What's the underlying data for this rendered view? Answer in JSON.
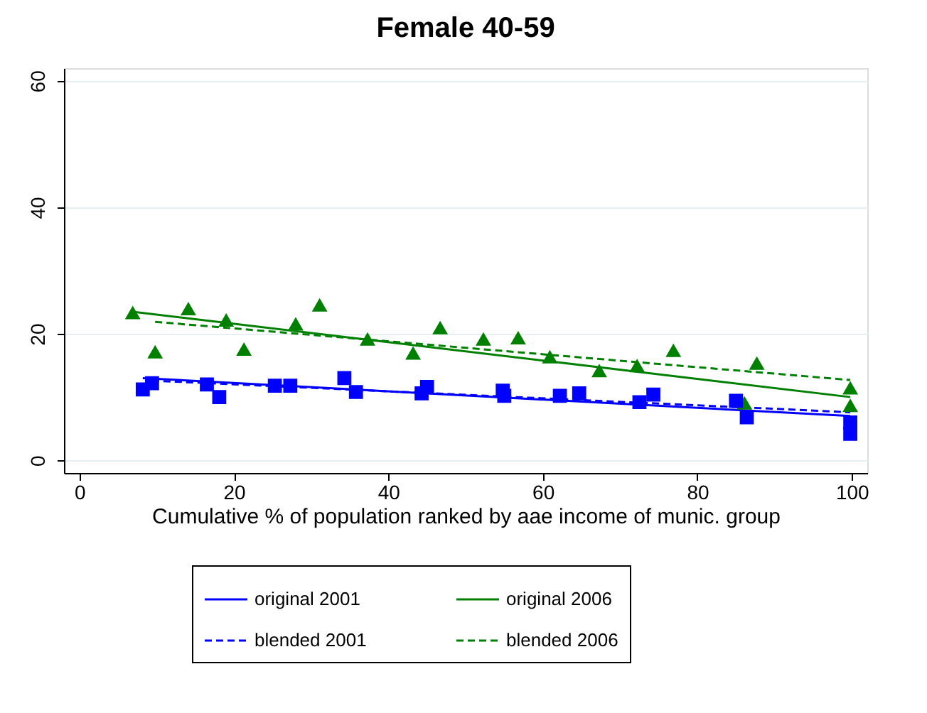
{
  "chart_data": {
    "type": "scatter",
    "title": "Female 40-59",
    "xlabel": "Cumulative % of population ranked by aae income of munic. group",
    "xlim": [
      -2,
      102
    ],
    "ylim": [
      -2,
      62
    ],
    "xticks": [
      0,
      20,
      40,
      60,
      80,
      100
    ],
    "yticks": [
      0,
      20,
      40,
      60
    ],
    "grid": "y",
    "legend": "bottom",
    "series": [
      {
        "type": "scatter",
        "marker": "square",
        "color": "#0000ff",
        "x": [
          8.2,
          16.5,
          25.3,
          34.3,
          44.3,
          54.8,
          62.2,
          72.5,
          86.4,
          99.8
        ],
        "values": [
          11.2,
          12.0,
          11.8,
          13.0,
          10.6,
          11.0,
          10.2,
          9.2,
          6.8,
          6.0
        ]
      },
      {
        "type": "scatter",
        "marker": "square",
        "color": "#0000ff",
        "x": [
          9.4,
          18.1,
          27.3,
          35.8,
          45.0,
          55.0,
          64.7,
          74.3,
          85.0,
          99.8
        ],
        "values": [
          12.2,
          10.0,
          11.8,
          10.8,
          11.6,
          10.2,
          10.6,
          10.4,
          9.4,
          4.2
        ]
      },
      {
        "type": "scatter",
        "marker": "triangle",
        "color": "#008000",
        "x": [
          6.9,
          14.1,
          21.3,
          31.1,
          43.2,
          52.3,
          60.9,
          72.2,
          86.1,
          99.8
        ],
        "values": [
          23.3,
          23.9,
          17.5,
          24.5,
          16.9,
          19.1,
          16.3,
          14.9,
          9.0,
          11.4
        ]
      },
      {
        "type": "scatter",
        "marker": "triangle",
        "color": "#008000",
        "x": [
          9.8,
          19.0,
          28.0,
          37.3,
          46.7,
          56.8,
          67.3,
          76.9,
          87.7,
          99.8
        ],
        "values": [
          17.1,
          22.1,
          21.5,
          19.1,
          20.9,
          19.3,
          14.1,
          17.3,
          15.3,
          8.6
        ]
      },
      {
        "type": "line",
        "name": "original  2001",
        "line_style": "solid",
        "color": "#0000ff",
        "x": [
          8.2,
          99.8
        ],
        "values": [
          13.0,
          7.0
        ]
      },
      {
        "type": "line",
        "name": "blended 2001",
        "line_style": "dashed",
        "color": "#0000ff",
        "x": [
          9.4,
          99.8
        ],
        "values": [
          12.6,
          7.6
        ]
      },
      {
        "type": "line",
        "name": "original  2006",
        "line_style": "solid",
        "color": "#008000",
        "x": [
          6.9,
          99.8
        ],
        "values": [
          23.5,
          10.0
        ]
      },
      {
        "type": "line",
        "name": "blended 2006",
        "line_style": "dashed",
        "color": "#008000",
        "x": [
          9.8,
          99.8
        ],
        "values": [
          21.9,
          12.7
        ]
      }
    ]
  }
}
